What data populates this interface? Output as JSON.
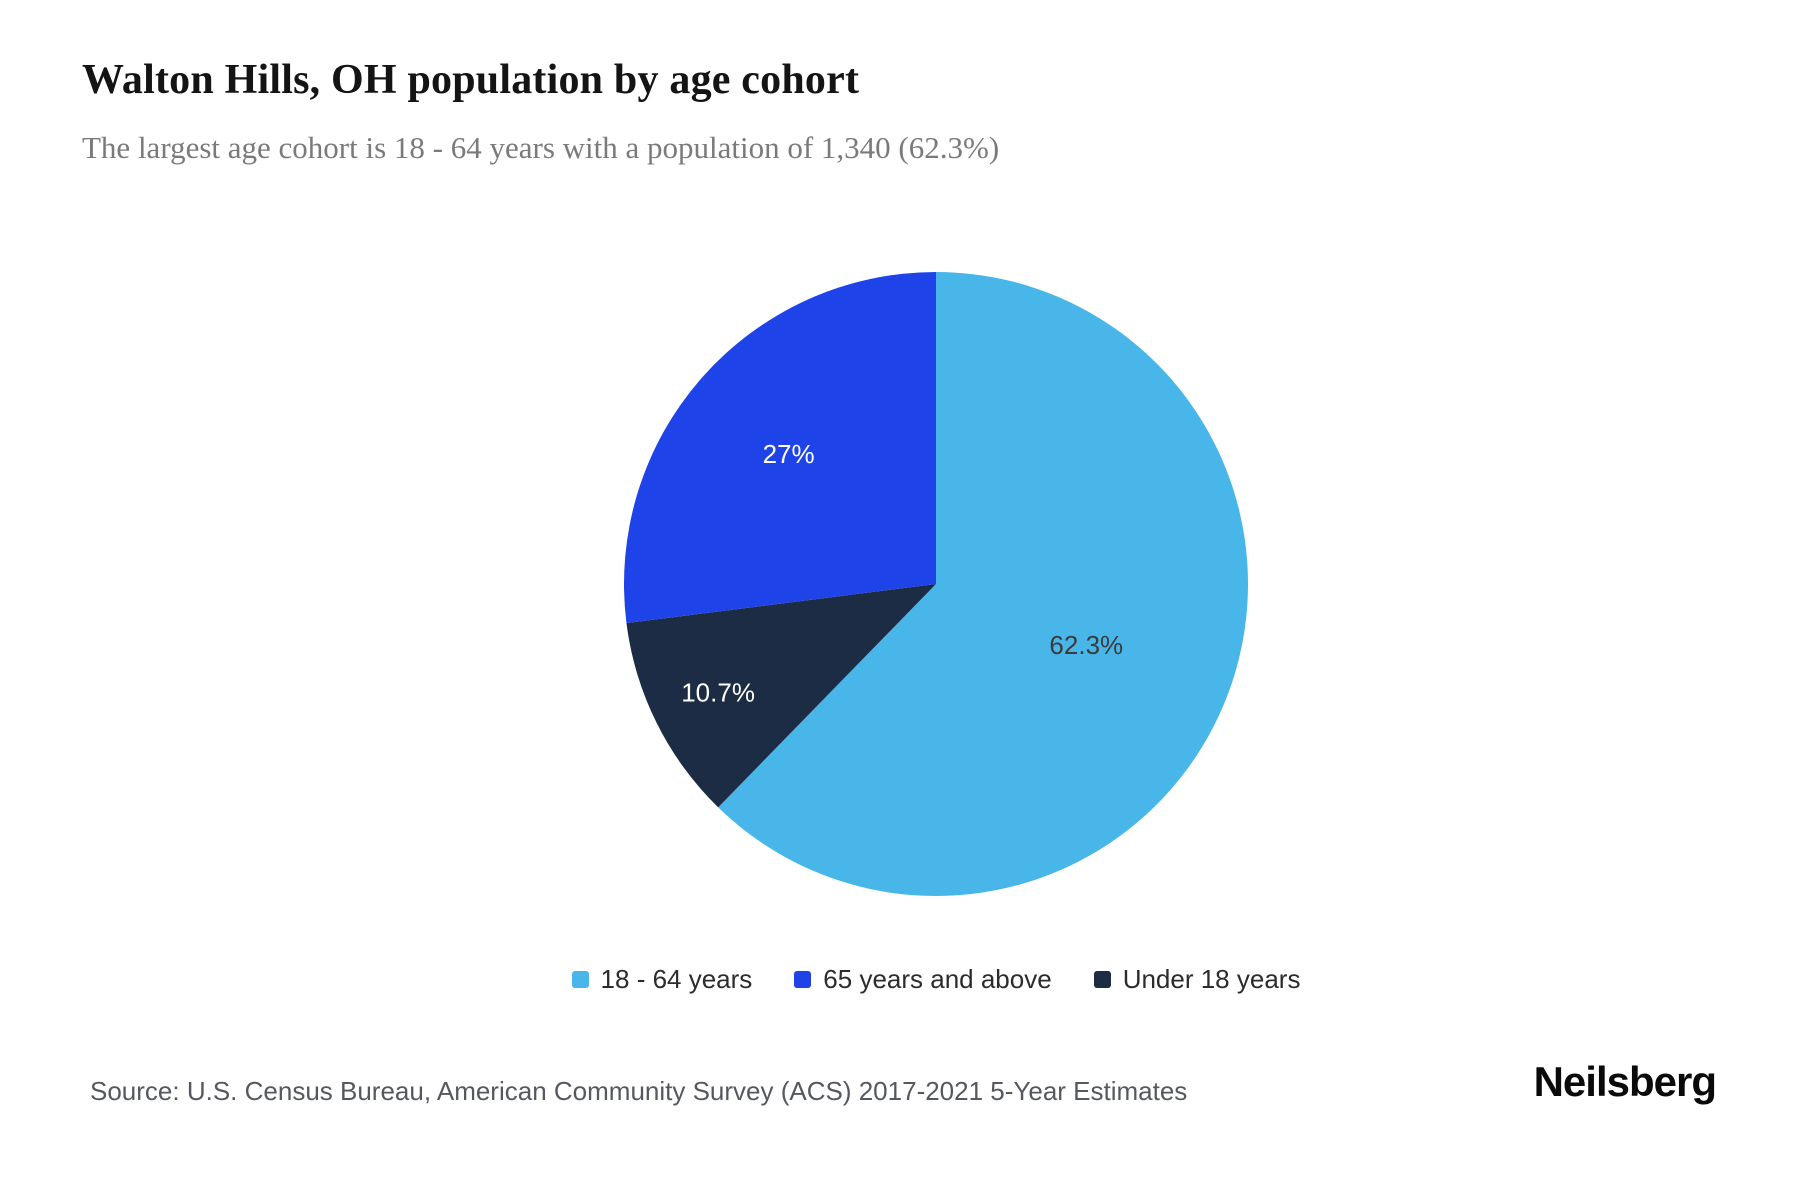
{
  "header": {
    "title": "Walton Hills, OH population by age cohort",
    "subtitle": "The largest age cohort is 18 - 64 years with a population of 1,340 (62.3%)"
  },
  "chart_data": {
    "type": "pie",
    "title": "Walton Hills, OH population by age cohort",
    "unit": "percent of population",
    "start_angle_deg": 0,
    "direction": "clockwise",
    "legend_position": "bottom",
    "slices": [
      {
        "label": "18 - 64 years",
        "value": 62.3,
        "display": "62.3%",
        "population": "1,340",
        "color": "#49b6e9",
        "label_color": "#3b3b3b"
      },
      {
        "label": "Under 18 years",
        "value": 10.7,
        "display": "10.7%",
        "color": "#1c2c44",
        "label_color": "#ffffff"
      },
      {
        "label": "65 years and above",
        "value": 27.0,
        "display": "27%",
        "color": "#1e43e8",
        "label_color": "#ffffff"
      }
    ],
    "legend_order": [
      0,
      2,
      1
    ]
  },
  "footer": {
    "source": "Source: U.S. Census Bureau, American Community Survey (ACS) 2017-2021 5-Year Estimates",
    "brand": "Neilsberg"
  }
}
